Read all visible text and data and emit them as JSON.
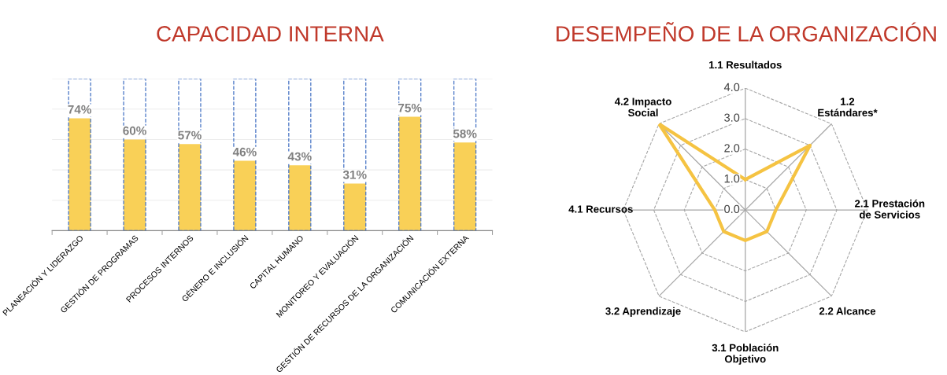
{
  "chart_data": [
    {
      "type": "bar",
      "title": "CAPACIDAD INTERNA",
      "categories": [
        "PLANEACIÓN Y LIDERAZGO",
        "GESTIÓN DE PROGRAMAS",
        "PROCESOS INTERNOS",
        "GÉNERO E INCLUSIÓN",
        "CAPITAL HUMANO",
        "MONITOREO Y EVALUACIÓN",
        "GESTIÓN DE RECURSOS DE LA ORGANIZACIÓN",
        "COMUNICACIÓN EXTERNA"
      ],
      "series": [
        {
          "color": "#f9d057",
          "values": [
            74,
            60,
            57,
            46,
            43,
            31,
            75,
            58
          ],
          "value_labels": [
            "74%",
            "60%",
            "57%",
            "46%",
            "43%",
            "31%",
            "75%",
            "58%"
          ]
        },
        {
          "color": "#4472c4",
          "line_style": "dashed",
          "values": [
            100,
            100,
            100,
            100,
            100,
            100,
            100,
            100
          ]
        }
      ],
      "ylim": [
        0,
        100
      ],
      "yticks": [
        {
          "value": 0,
          "label": null
        },
        {
          "value": 20,
          "label": null
        },
        {
          "value": 40,
          "label": null
        },
        {
          "value": 60,
          "label": null
        },
        {
          "value": 80,
          "label": null
        },
        {
          "value": 100,
          "label": null
        }
      ],
      "grid": "y",
      "tick_labels": "x"
    },
    {
      "type": "radar",
      "title": "DESEMPEÑO DE LA ORGANIZACIÓN",
      "categories": [
        "1.1 Resultados",
        "1.2\nEstándares*",
        "2.1 Prestación\nde Servicios",
        "2.2 Alcance",
        "3.1 Población\nObjetivo",
        "3.2 Aprendizaje",
        "4.1 Recursos",
        "4.2 Impacto\nSocial"
      ],
      "series": [
        {
          "color": "#f5c342",
          "values": [
            1.0,
            3.0,
            1.0,
            1.0,
            1.0,
            1.0,
            1.0,
            4.0
          ]
        }
      ],
      "ylim": [
        0,
        4
      ],
      "yticks": [
        {
          "value": 0,
          "label": "0.0"
        },
        {
          "value": 1,
          "label": "1.0"
        },
        {
          "value": 2,
          "label": "2.0"
        },
        {
          "value": 3,
          "label": "3.0"
        },
        {
          "value": 4,
          "label": "4.0"
        }
      ],
      "grid": true,
      "marker": "none"
    }
  ]
}
